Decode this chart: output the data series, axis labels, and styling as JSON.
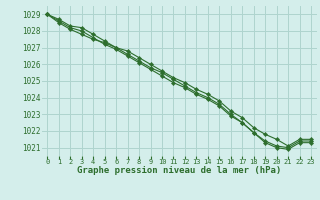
{
  "title": "Graphe pression niveau de la mer (hPa)",
  "background_color": "#d4eeeb",
  "grid_color": "#aed4ce",
  "line_color": "#2d6e2d",
  "marker_color": "#2d6e2d",
  "ylim": [
    1020.5,
    1029.5
  ],
  "yticks": [
    1021,
    1022,
    1023,
    1024,
    1025,
    1026,
    1027,
    1028,
    1029
  ],
  "xlim": [
    -0.5,
    23.5
  ],
  "xticks": [
    0,
    1,
    2,
    3,
    4,
    5,
    6,
    7,
    8,
    9,
    10,
    11,
    12,
    13,
    14,
    15,
    16,
    17,
    18,
    19,
    20,
    21,
    22,
    23
  ],
  "xlabel_ticks": [
    "0",
    "1",
    "2",
    "3",
    "4",
    "5",
    "6",
    "7",
    "8",
    "9",
    "10",
    "11",
    "12",
    "13",
    "14",
    "15",
    "16",
    "17",
    "18",
    "19",
    "20",
    "21",
    "22",
    "23"
  ],
  "series1": [
    1029.0,
    1028.7,
    1028.3,
    1028.2,
    1027.8,
    1027.4,
    1027.0,
    1026.8,
    1026.4,
    1026.0,
    1025.6,
    1025.2,
    1024.9,
    1024.5,
    1024.2,
    1023.8,
    1023.2,
    1022.8,
    1022.2,
    1021.8,
    1021.5,
    1021.1,
    1021.5,
    1021.5
  ],
  "series2": [
    1029.0,
    1028.6,
    1028.2,
    1028.0,
    1027.6,
    1027.2,
    1026.9,
    1026.5,
    1026.1,
    1025.7,
    1025.3,
    1024.9,
    1024.6,
    1024.2,
    1023.9,
    1023.5,
    1022.9,
    1022.5,
    1021.9,
    1021.4,
    1021.1,
    1021.0,
    1021.4,
    1021.4
  ],
  "series3": [
    1029.0,
    1028.5,
    1028.1,
    1027.8,
    1027.5,
    1027.3,
    1027.0,
    1026.6,
    1026.2,
    1025.8,
    1025.5,
    1025.1,
    1024.7,
    1024.3,
    1024.0,
    1023.6,
    1023.0,
    1022.5,
    1021.9,
    1021.3,
    1021.0,
    1020.9,
    1021.3,
    1021.3
  ]
}
